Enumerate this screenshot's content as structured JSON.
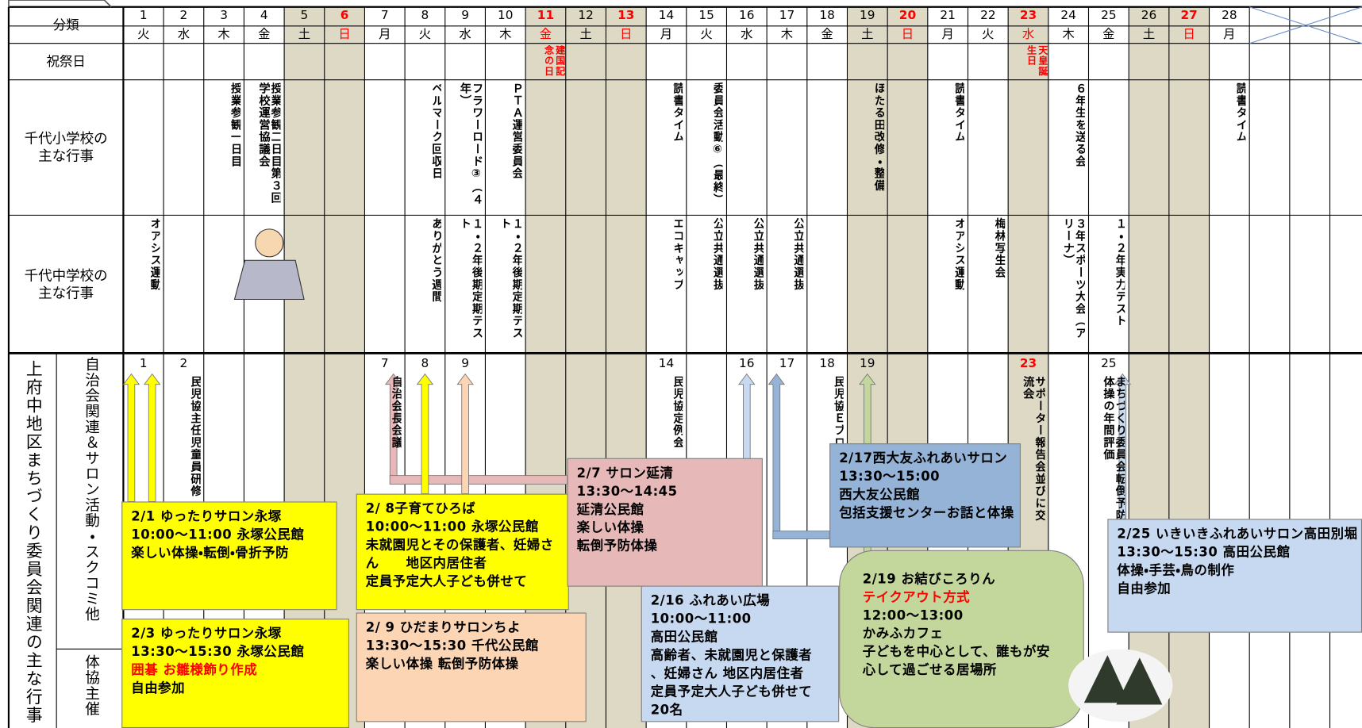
{
  "labels": {
    "category": "分類",
    "holiday": "祝祭日",
    "elementary": [
      "千代小学校の",
      "主な行事"
    ],
    "middle": [
      "千代中学校の",
      "主な行事"
    ],
    "district": "上府中地区まちづくり委員会関連の主な行事",
    "community": "自治会関連＆サロン活動・スクコミ他",
    "sports": "体協主催"
  },
  "days": [
    {
      "date": 1,
      "weekday": "火",
      "middle": "オアシス運動",
      "community_date": 1
    },
    {
      "date": 2,
      "weekday": "水",
      "community_date": 2,
      "community": "民児協主任児童員研修"
    },
    {
      "date": 3,
      "weekday": "木",
      "elementary": "授業参観一日目"
    },
    {
      "date": 4,
      "weekday": "金",
      "elementary": "授業参観二日目第３回学校運営協議会"
    },
    {
      "date": 5,
      "weekday": "土"
    },
    {
      "date": 6,
      "weekday": "日"
    },
    {
      "date": 7,
      "weekday": "月",
      "community_date": 7,
      "community": "自治会長会議"
    },
    {
      "date": 8,
      "weekday": "火",
      "elementary": "ベルマーク回収日",
      "middle": "ありがとう週間",
      "community_date": 8
    },
    {
      "date": 9,
      "weekday": "水",
      "elementary": "フラワーロード③（４年）",
      "middle": "１・２年後期定期テスト",
      "community_date": 9
    },
    {
      "date": 10,
      "weekday": "木",
      "elementary": "ＰＴＡ運営委員会",
      "middle": "１・２年後期定期テスト"
    },
    {
      "date": 11,
      "weekday": "金",
      "holiday": "建国記念の日"
    },
    {
      "date": 12,
      "weekday": "土"
    },
    {
      "date": 13,
      "weekday": "日"
    },
    {
      "date": 14,
      "weekday": "月",
      "elementary": "読書タイム",
      "middle": "エコキャップ",
      "community_date": 14,
      "community": "民児協定例会"
    },
    {
      "date": 15,
      "weekday": "火",
      "elementary": "委員会活動⑥（最終）",
      "middle": "公立共通選抜"
    },
    {
      "date": 16,
      "weekday": "水",
      "middle": "公立共通選抜",
      "community_date": 16
    },
    {
      "date": 17,
      "weekday": "木",
      "middle": "公立共通選抜",
      "community_date": 17
    },
    {
      "date": 18,
      "weekday": "金",
      "community_date": 18,
      "community": "民児協Ｅブロック研修会"
    },
    {
      "date": 19,
      "weekday": "土",
      "elementary": "ほたる田改修・整備",
      "community_date": 19
    },
    {
      "date": 20,
      "weekday": "日"
    },
    {
      "date": 21,
      "weekday": "月",
      "elementary": "読書タイム",
      "middle": "オアシス運動"
    },
    {
      "date": 22,
      "weekday": "火",
      "middle": "梅林写生会"
    },
    {
      "date": 23,
      "weekday": "水",
      "holiday": "天皇誕生日",
      "community_date": 23,
      "community": "サポーター報告会並びに交流会"
    },
    {
      "date": 24,
      "weekday": "木",
      "elementary": "６年生を送る会",
      "middle": "３年スポーツ大会（アリーナ）"
    },
    {
      "date": 25,
      "weekday": "金",
      "middle": "１・２年実力テスト",
      "community_date": 25,
      "community": "まちづくり委員会転倒予防体操の年間評価"
    },
    {
      "date": 26,
      "weekday": "土"
    },
    {
      "date": 27,
      "weekday": "日"
    },
    {
      "date": 28,
      "weekday": "月",
      "elementary": "読書タイム"
    }
  ],
  "events": [
    {
      "color": "#ffff00",
      "lines": [
        "2/1 ゆったりサロン永塚",
        "10:00～11:00 永塚公民館",
        "楽しい体操・転倒・骨折予防"
      ]
    },
    {
      "color": "#ffff00",
      "lines": [
        "2/3 ゆったりサロン永塚",
        "13:30～15:30 永塚公民館",
        {
          "text": "囲碁 お雛様飾り作成",
          "color": "#ff0000"
        },
        "自由参加"
      ]
    },
    {
      "color": "#ffff00",
      "lines": [
        "2/ 8子育てひろば",
        "10:00～11:00 永塚公民館",
        "未就園児とその保護者、妊婦さ",
        "ん　　地区内居住者",
        "定員予定大人子ども併せて"
      ]
    },
    {
      "color": "#fcd5b5",
      "lines": [
        "2/ 9 ひだまりサロンちよ",
        "13:30～15:30 千代公民館",
        "楽しい体操 転倒予防体操"
      ]
    },
    {
      "color": "#e6b9b8",
      "lines": [
        "2/7 サロン延清",
        "13:30～14:45",
        "延清公民館",
        "楽しい体操",
        "転倒予防体操"
      ]
    },
    {
      "color": "#c6d9f1",
      "lines": [
        "2/16 ふれあい広場",
        "10:00～11:00",
        "高田公民館",
        "高齢者、未就園児と保護者",
        "、妊婦さん 地区内居住者",
        "定員予定大人子ども併せて",
        "20名"
      ]
    },
    {
      "color": "#95b3d7",
      "lines": [
        "2/17西大友ふれあいサロン",
        "13:30～15:00",
        "西大友公民館",
        "包括支援センターお話と体操"
      ]
    },
    {
      "color": "#c3d69b",
      "lines": [
        "2/19 お結びころりん",
        {
          "text": "テイクアウト方式",
          "color": "#ff0000"
        },
        "12:00～13:00",
        "かみふカフェ",
        "子どもを中心として、誰もが安",
        "心して過ごせる居場所"
      ]
    },
    {
      "color": "#c6d9f1",
      "lines": [
        "2/25 いきいきふれあいサロン高田別堀",
        "13:30～15:30 高田公民館",
        "体操・手芸・鳥の制作",
        "自由参加"
      ]
    }
  ]
}
